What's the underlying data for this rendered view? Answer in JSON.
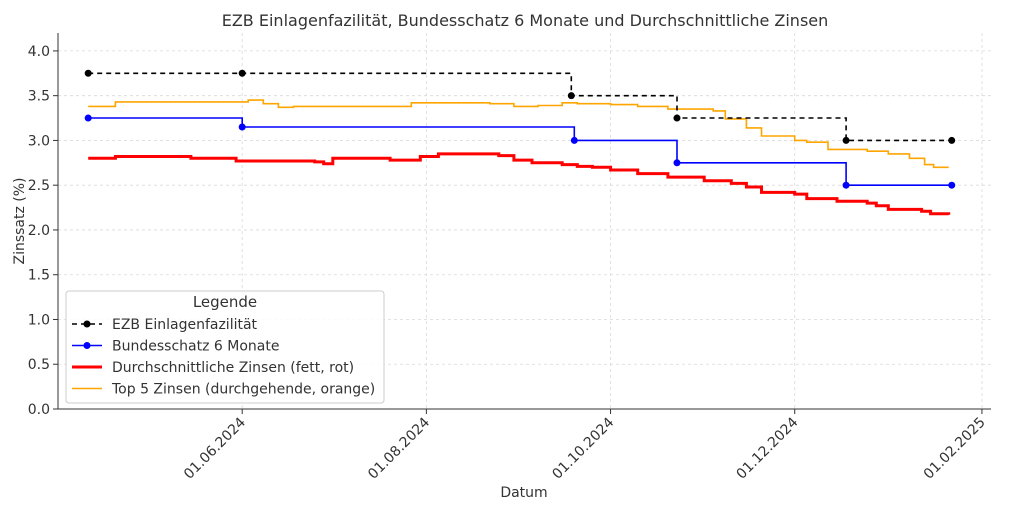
{
  "chart_data": {
    "type": "line",
    "title": "EZB Einlagenfazilität, Bundesschatz 6 Monate und Durchschnittliche Zinsen",
    "xlabel": "Datum",
    "ylabel": "Zinssatz (%)",
    "xlim": [
      "2024-04-01",
      "2025-02-04"
    ],
    "ylim": [
      0.0,
      4.2
    ],
    "yticks": [
      0.0,
      0.5,
      1.0,
      1.5,
      2.0,
      2.5,
      3.0,
      3.5,
      4.0
    ],
    "ytick_labels": [
      "0.0",
      "0.5",
      "1.0",
      "1.5",
      "2.0",
      "2.5",
      "3.0",
      "3.5",
      "4.0"
    ],
    "xticks": [
      "2024-06-01",
      "2024-08-01",
      "2024-10-01",
      "2024-12-01",
      "2025-02-01"
    ],
    "xtick_labels": [
      "01.06.2024",
      "01.08.2024",
      "01.10.2024",
      "01.12.2024",
      "01.02.2025"
    ],
    "grid": true,
    "legend": {
      "title": "Legende",
      "placement": "lower-left"
    },
    "series": [
      {
        "name": "EZB Einlagenfazilität",
        "color": "#000000",
        "style": "dashed-step",
        "markers": true,
        "points": [
          {
            "x": "2024-04-11",
            "y": 3.75
          },
          {
            "x": "2024-06-01",
            "y": 3.75
          },
          {
            "x": "2024-09-18",
            "y": 3.5
          },
          {
            "x": "2024-10-23",
            "y": 3.25
          },
          {
            "x": "2024-12-18",
            "y": 3.0
          },
          {
            "x": "2025-01-22",
            "y": 3.0
          }
        ]
      },
      {
        "name": "Bundesschatz 6 Monate",
        "color": "#0000ff",
        "style": "step",
        "markers": true,
        "points": [
          {
            "x": "2024-04-11",
            "y": 3.25
          },
          {
            "x": "2024-06-01",
            "y": 3.15
          },
          {
            "x": "2024-09-19",
            "y": 3.0
          },
          {
            "x": "2024-10-23",
            "y": 2.75
          },
          {
            "x": "2024-12-18",
            "y": 2.5
          },
          {
            "x": "2025-01-22",
            "y": 2.5
          }
        ]
      },
      {
        "name": "Durchschnittliche Zinsen (fett, rot)",
        "color": "#ff0000",
        "style": "thick-step",
        "markers": false,
        "points": [
          {
            "x": "2024-04-11",
            "y": 2.8
          },
          {
            "x": "2024-04-20",
            "y": 2.82
          },
          {
            "x": "2024-05-15",
            "y": 2.8
          },
          {
            "x": "2024-05-30",
            "y": 2.77
          },
          {
            "x": "2024-06-25",
            "y": 2.76
          },
          {
            "x": "2024-06-28",
            "y": 2.74
          },
          {
            "x": "2024-07-01",
            "y": 2.8
          },
          {
            "x": "2024-07-20",
            "y": 2.78
          },
          {
            "x": "2024-07-30",
            "y": 2.82
          },
          {
            "x": "2024-08-05",
            "y": 2.85
          },
          {
            "x": "2024-08-25",
            "y": 2.83
          },
          {
            "x": "2024-08-30",
            "y": 2.78
          },
          {
            "x": "2024-09-05",
            "y": 2.75
          },
          {
            "x": "2024-09-15",
            "y": 2.73
          },
          {
            "x": "2024-09-20",
            "y": 2.71
          },
          {
            "x": "2024-09-25",
            "y": 2.7
          },
          {
            "x": "2024-10-01",
            "y": 2.67
          },
          {
            "x": "2024-10-10",
            "y": 2.63
          },
          {
            "x": "2024-10-20",
            "y": 2.59
          },
          {
            "x": "2024-11-01",
            "y": 2.55
          },
          {
            "x": "2024-11-10",
            "y": 2.52
          },
          {
            "x": "2024-11-15",
            "y": 2.48
          },
          {
            "x": "2024-11-20",
            "y": 2.42
          },
          {
            "x": "2024-12-01",
            "y": 2.4
          },
          {
            "x": "2024-12-05",
            "y": 2.35
          },
          {
            "x": "2024-12-15",
            "y": 2.32
          },
          {
            "x": "2024-12-25",
            "y": 2.3
          },
          {
            "x": "2024-12-28",
            "y": 2.27
          },
          {
            "x": "2025-01-01",
            "y": 2.23
          },
          {
            "x": "2025-01-12",
            "y": 2.21
          },
          {
            "x": "2025-01-15",
            "y": 2.18
          },
          {
            "x": "2025-01-21",
            "y": 2.17
          }
        ]
      },
      {
        "name": "Top 5 Zinsen (durchgehende, orange)",
        "color": "#ffa500",
        "style": "step",
        "markers": false,
        "points": [
          {
            "x": "2024-04-11",
            "y": 3.38
          },
          {
            "x": "2024-04-20",
            "y": 3.43
          },
          {
            "x": "2024-06-03",
            "y": 3.45
          },
          {
            "x": "2024-06-08",
            "y": 3.41
          },
          {
            "x": "2024-06-13",
            "y": 3.37
          },
          {
            "x": "2024-06-18",
            "y": 3.38
          },
          {
            "x": "2024-07-27",
            "y": 3.42
          },
          {
            "x": "2024-08-22",
            "y": 3.41
          },
          {
            "x": "2024-08-30",
            "y": 3.38
          },
          {
            "x": "2024-09-07",
            "y": 3.39
          },
          {
            "x": "2024-09-15",
            "y": 3.42
          },
          {
            "x": "2024-09-20",
            "y": 3.41
          },
          {
            "x": "2024-10-01",
            "y": 3.4
          },
          {
            "x": "2024-10-10",
            "y": 3.38
          },
          {
            "x": "2024-10-20",
            "y": 3.35
          },
          {
            "x": "2024-11-04",
            "y": 3.33
          },
          {
            "x": "2024-11-08",
            "y": 3.24
          },
          {
            "x": "2024-11-15",
            "y": 3.14
          },
          {
            "x": "2024-11-20",
            "y": 3.05
          },
          {
            "x": "2024-12-01",
            "y": 3.0
          },
          {
            "x": "2024-12-05",
            "y": 2.98
          },
          {
            "x": "2024-12-12",
            "y": 2.9
          },
          {
            "x": "2024-12-25",
            "y": 2.88
          },
          {
            "x": "2025-01-01",
            "y": 2.85
          },
          {
            "x": "2025-01-08",
            "y": 2.8
          },
          {
            "x": "2025-01-13",
            "y": 2.73
          },
          {
            "x": "2025-01-16",
            "y": 2.7
          },
          {
            "x": "2025-01-21",
            "y": 2.7
          }
        ]
      }
    ]
  }
}
